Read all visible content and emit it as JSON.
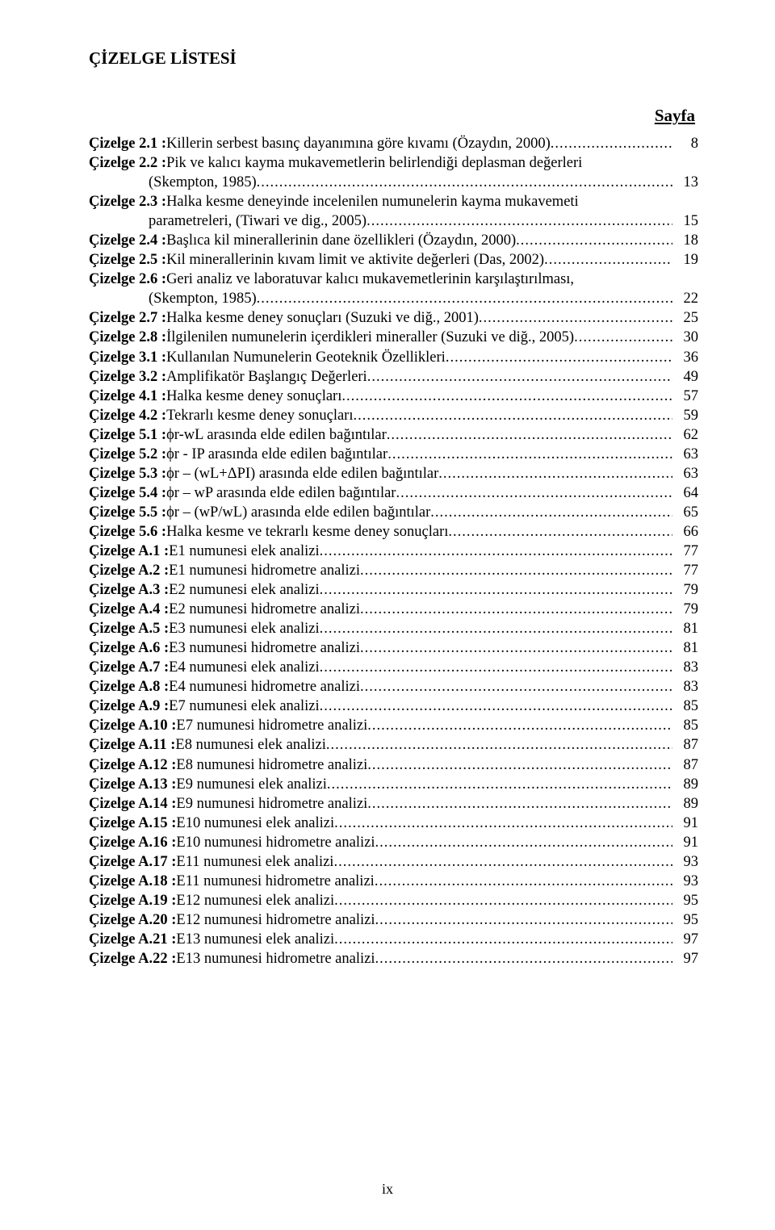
{
  "title": "ÇİZELGE LİSTESİ",
  "page_label": "Sayfa",
  "footer_pageno": "ix",
  "font": {
    "family": "Times New Roman",
    "title_size_pt": 16,
    "body_size_pt": 14,
    "color": "#000000"
  },
  "background_color": "#ffffff",
  "entries": [
    {
      "label": "Çizelge 2.1 :",
      "desc": " Killerin serbest basınç dayanımına göre kıvamı (Özaydın, 2000)",
      "page": "8"
    },
    {
      "label": "Çizelge 2.2 :",
      "desc": " Pik ve kalıcı kayma mukavemetlerin belirlendiği deplasman değerleri",
      "wrap": "(Skempton, 1985)",
      "page": "13"
    },
    {
      "label": "Çizelge 2.3 :",
      "desc": " Halka kesme deneyinde incelenilen numunelerin kayma mukavemeti",
      "wrap": "parametreleri, (Tiwari ve dig., 2005)",
      "page": "15"
    },
    {
      "label": "Çizelge 2.4 :",
      "desc": " Başlıca kil minerallerinin dane özellikleri (Özaydın, 2000)",
      "page": "18"
    },
    {
      "label": "Çizelge 2.5 :",
      "desc": " Kil minerallerinin kıvam limit ve aktivite değerleri (Das, 2002)",
      "page": "19"
    },
    {
      "label": "Çizelge 2.6 :",
      "desc": " Geri analiz ve laboratuvar kalıcı mukavemetlerinin karşılaştırılması,",
      "wrap": "(Skempton, 1985)",
      "page": "22"
    },
    {
      "label": "Çizelge 2.7 :",
      "desc": " Halka kesme deney sonuçları (Suzuki ve diğ., 2001)",
      "page": "25"
    },
    {
      "label": "Çizelge 2.8 :",
      "desc": " İlgilenilen numunelerin içerdikleri mineraller (Suzuki ve diğ., 2005)",
      "page": "30"
    },
    {
      "label": "Çizelge 3.1 :",
      "desc": " Kullanılan Numunelerin Geoteknik Özellikleri",
      "page": "36"
    },
    {
      "label": "Çizelge 3.2 :",
      "desc": " Amplifikatör Başlangıç Değerleri",
      "page": "49"
    },
    {
      "label": "Çizelge 4.1 :",
      "desc": " Halka kesme deney sonuçları",
      "page": "57"
    },
    {
      "label": "Çizelge 4.2 :",
      "desc": " Tekrarlı kesme deney sonuçları",
      "page": "59"
    },
    {
      "label": "Çizelge 5.1 :",
      "desc": " ϕr-wL arasında elde edilen bağıntılar",
      "page": "62"
    },
    {
      "label": "Çizelge 5.2 :",
      "desc": " ϕr - IP arasında elde edilen bağıntılar",
      "page": "63"
    },
    {
      "label": "Çizelge 5.3 :",
      "desc": " ϕr – (wL+ΔPI) arasında elde edilen bağıntılar",
      "page": "63"
    },
    {
      "label": "Çizelge 5.4 :",
      "desc": " ϕr – wP arasında elde edilen bağıntılar",
      "page": "64"
    },
    {
      "label": "Çizelge 5.5 :",
      "desc": " ϕr – (wP/wL) arasında elde edilen bağıntılar",
      "page": "65"
    },
    {
      "label": "Çizelge 5.6 :",
      "desc": " Halka kesme ve tekrarlı kesme deney sonuçları",
      "page": "66"
    },
    {
      "label": "Çizelge A.1 :",
      "desc": " E1 numunesi elek analizi",
      "page": "77"
    },
    {
      "label": "Çizelge A.2 :",
      "desc": " E1 numunesi hidrometre analizi",
      "page": "77"
    },
    {
      "label": "Çizelge A.3 :",
      "desc": " E2 numunesi elek analizi",
      "page": "79"
    },
    {
      "label": "Çizelge A.4 :",
      "desc": " E2 numunesi hidrometre analizi",
      "page": "79"
    },
    {
      "label": "Çizelge A.5 :",
      "desc": " E3 numunesi elek analizi",
      "page": "81"
    },
    {
      "label": "Çizelge A.6 :",
      "desc": " E3 numunesi hidrometre analizi",
      "page": "81"
    },
    {
      "label": "Çizelge A.7 :",
      "desc": " E4 numunesi elek analizi",
      "page": "83"
    },
    {
      "label": "Çizelge A.8 :",
      "desc": " E4 numunesi hidrometre analizi",
      "page": "83"
    },
    {
      "label": "Çizelge A.9 :",
      "desc": " E7 numunesi elek analizi",
      "page": "85"
    },
    {
      "label": "Çizelge A.10 :",
      "desc": " E7 numunesi hidrometre analizi",
      "page": "85"
    },
    {
      "label": "Çizelge A.11 :",
      "desc": " E8 numunesi elek analizi",
      "page": "87"
    },
    {
      "label": "Çizelge A.12 :",
      "desc": " E8 numunesi hidrometre analizi",
      "page": "87"
    },
    {
      "label": "Çizelge A.13 :",
      "desc": " E9 numunesi elek analizi",
      "page": "89"
    },
    {
      "label": "Çizelge A.14 :",
      "desc": " E9 numunesi hidrometre analizi",
      "page": "89"
    },
    {
      "label": "Çizelge A.15 :",
      "desc": " E10 numunesi elek analizi",
      "page": "91"
    },
    {
      "label": "Çizelge A.16 :",
      "desc": " E10 numunesi hidrometre analizi",
      "page": "91"
    },
    {
      "label": "Çizelge A.17 :",
      "desc": " E11 numunesi elek analizi",
      "page": "93"
    },
    {
      "label": "Çizelge A.18 :",
      "desc": " E11 numunesi hidrometre analizi",
      "page": "93"
    },
    {
      "label": "Çizelge A.19 :",
      "desc": " E12 numunesi elek analizi",
      "page": "95"
    },
    {
      "label": "Çizelge A.20 :",
      "desc": " E12 numunesi hidrometre analizi",
      "page": "95"
    },
    {
      "label": "Çizelge A.21 :",
      "desc": " E13 numunesi elek analizi",
      "page": "97"
    },
    {
      "label": "Çizelge A.22 :",
      "desc": " E13 numunesi hidrometre analizi",
      "page": "97"
    }
  ]
}
